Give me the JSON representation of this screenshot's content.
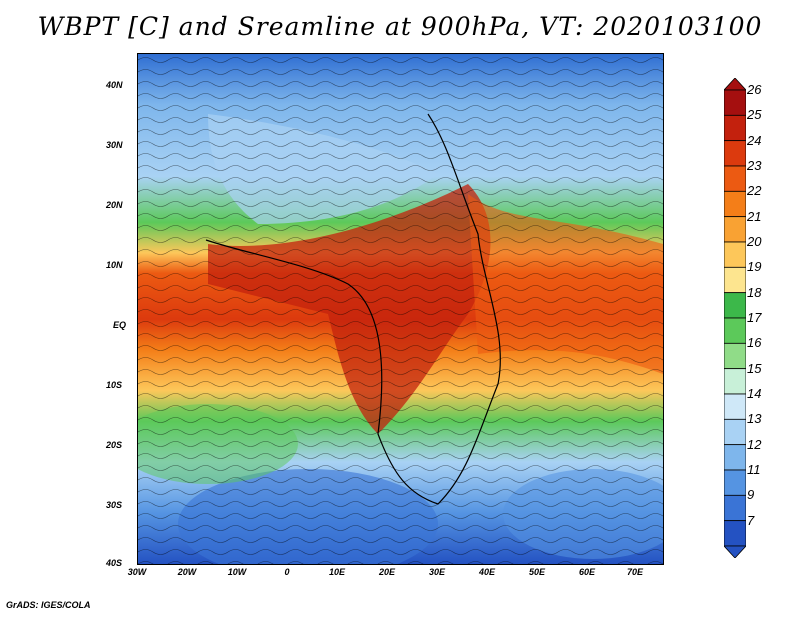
{
  "title": "WBPT [C] and Sreamline at 900hPa, VT: 2020103100",
  "credit": "GrADS: IGES/COLA",
  "lat_labels": [
    "40N",
    "30N",
    "20N",
    "10N",
    "EQ",
    "10S",
    "20S",
    "30S",
    "40S"
  ],
  "lon_labels": [
    "30W",
    "20W",
    "10W",
    "0",
    "10E",
    "20E",
    "30E",
    "40E",
    "50E",
    "60E",
    "70E"
  ],
  "colorbar": {
    "labels": [
      "26",
      "25",
      "24",
      "23",
      "22",
      "21",
      "20",
      "19",
      "18",
      "17",
      "16",
      "15",
      "14",
      "13",
      "12",
      "11",
      "9",
      "7"
    ],
    "colors": [
      "#a50f0f",
      "#c3210d",
      "#dc3a0e",
      "#ec5a12",
      "#f47e18",
      "#f9a233",
      "#fdc75a",
      "#fde58f",
      "#3cb84a",
      "#5cc95a",
      "#90dc88",
      "#c8f0d8",
      "#cfe8f8",
      "#a9d2f4",
      "#7eb6ec",
      "#5594e2",
      "#3a74d6",
      "#2452c2"
    ]
  },
  "map_data": {
    "variable": "Wet-bulb potential temperature (C)",
    "level": "900hPa",
    "region": {
      "lon": [
        -30,
        75
      ],
      "lat": [
        -40,
        45
      ]
    }
  }
}
